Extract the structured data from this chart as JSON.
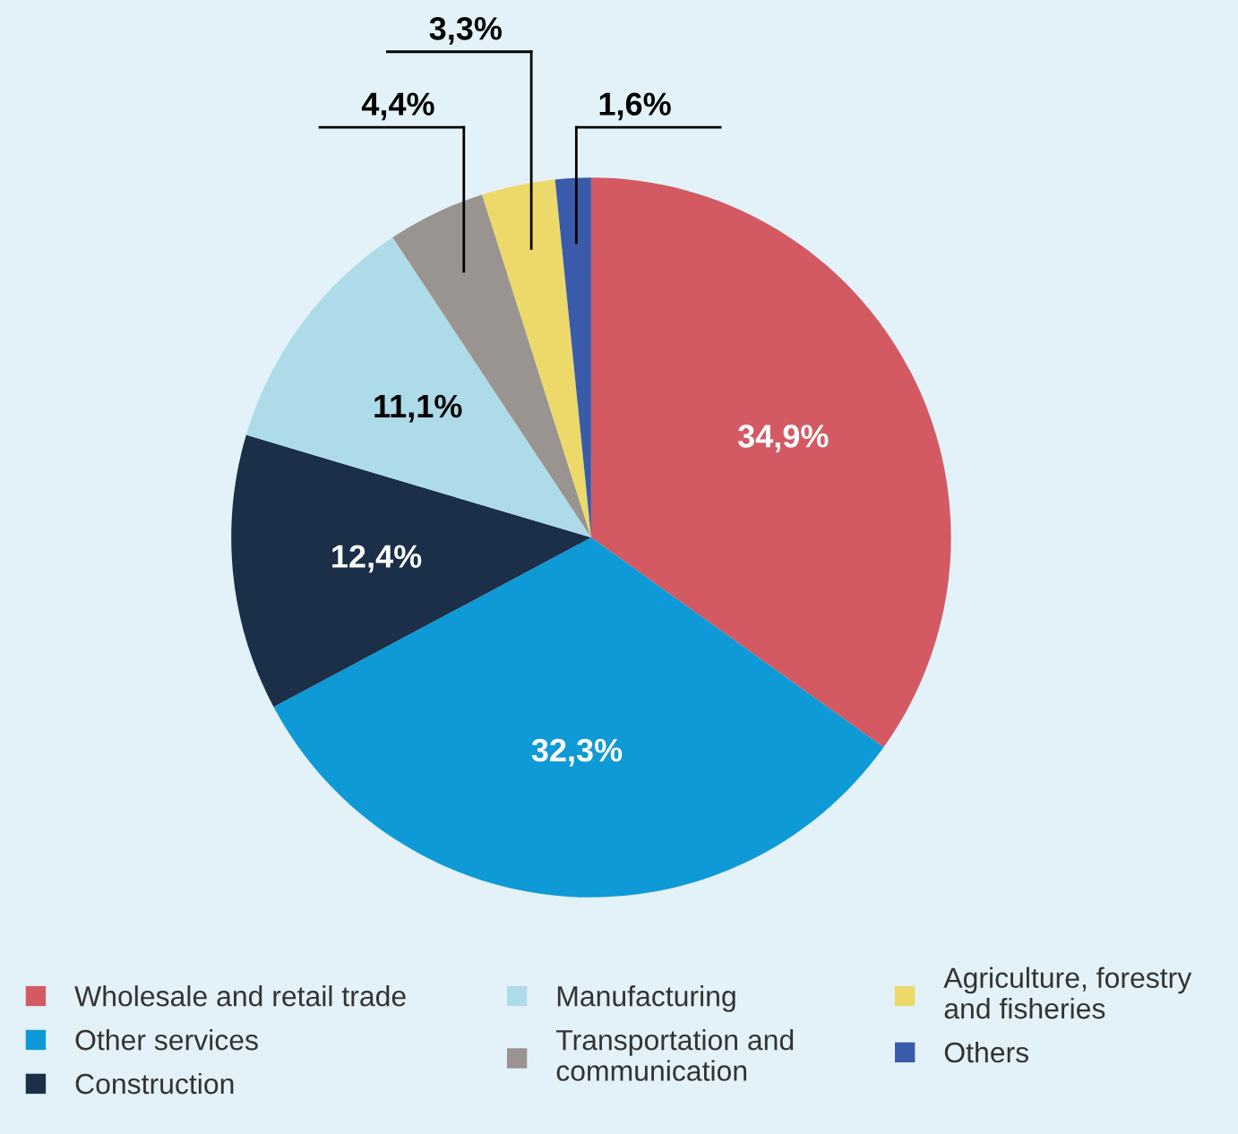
{
  "chart_data": {
    "type": "pie",
    "categories": [
      "Wholesale and retail trade",
      "Other services",
      "Construction",
      "Manufacturing",
      "Transportation and communication",
      "Agriculture, forestry and fisheries",
      "Others"
    ],
    "values": [
      34.9,
      32.3,
      12.4,
      11.1,
      4.4,
      3.3,
      1.6
    ],
    "colors": [
      "#d35a63",
      "#0e9ad6",
      "#1b2f48",
      "#aedbe8",
      "#9a9490",
      "#ecd96a",
      "#3a5ba9"
    ],
    "value_labels": [
      "34,9%",
      "32,3%",
      "12,4%",
      "11,1%",
      "4,4%",
      "3,3%",
      "1,6%"
    ],
    "legend": "bottom"
  }
}
